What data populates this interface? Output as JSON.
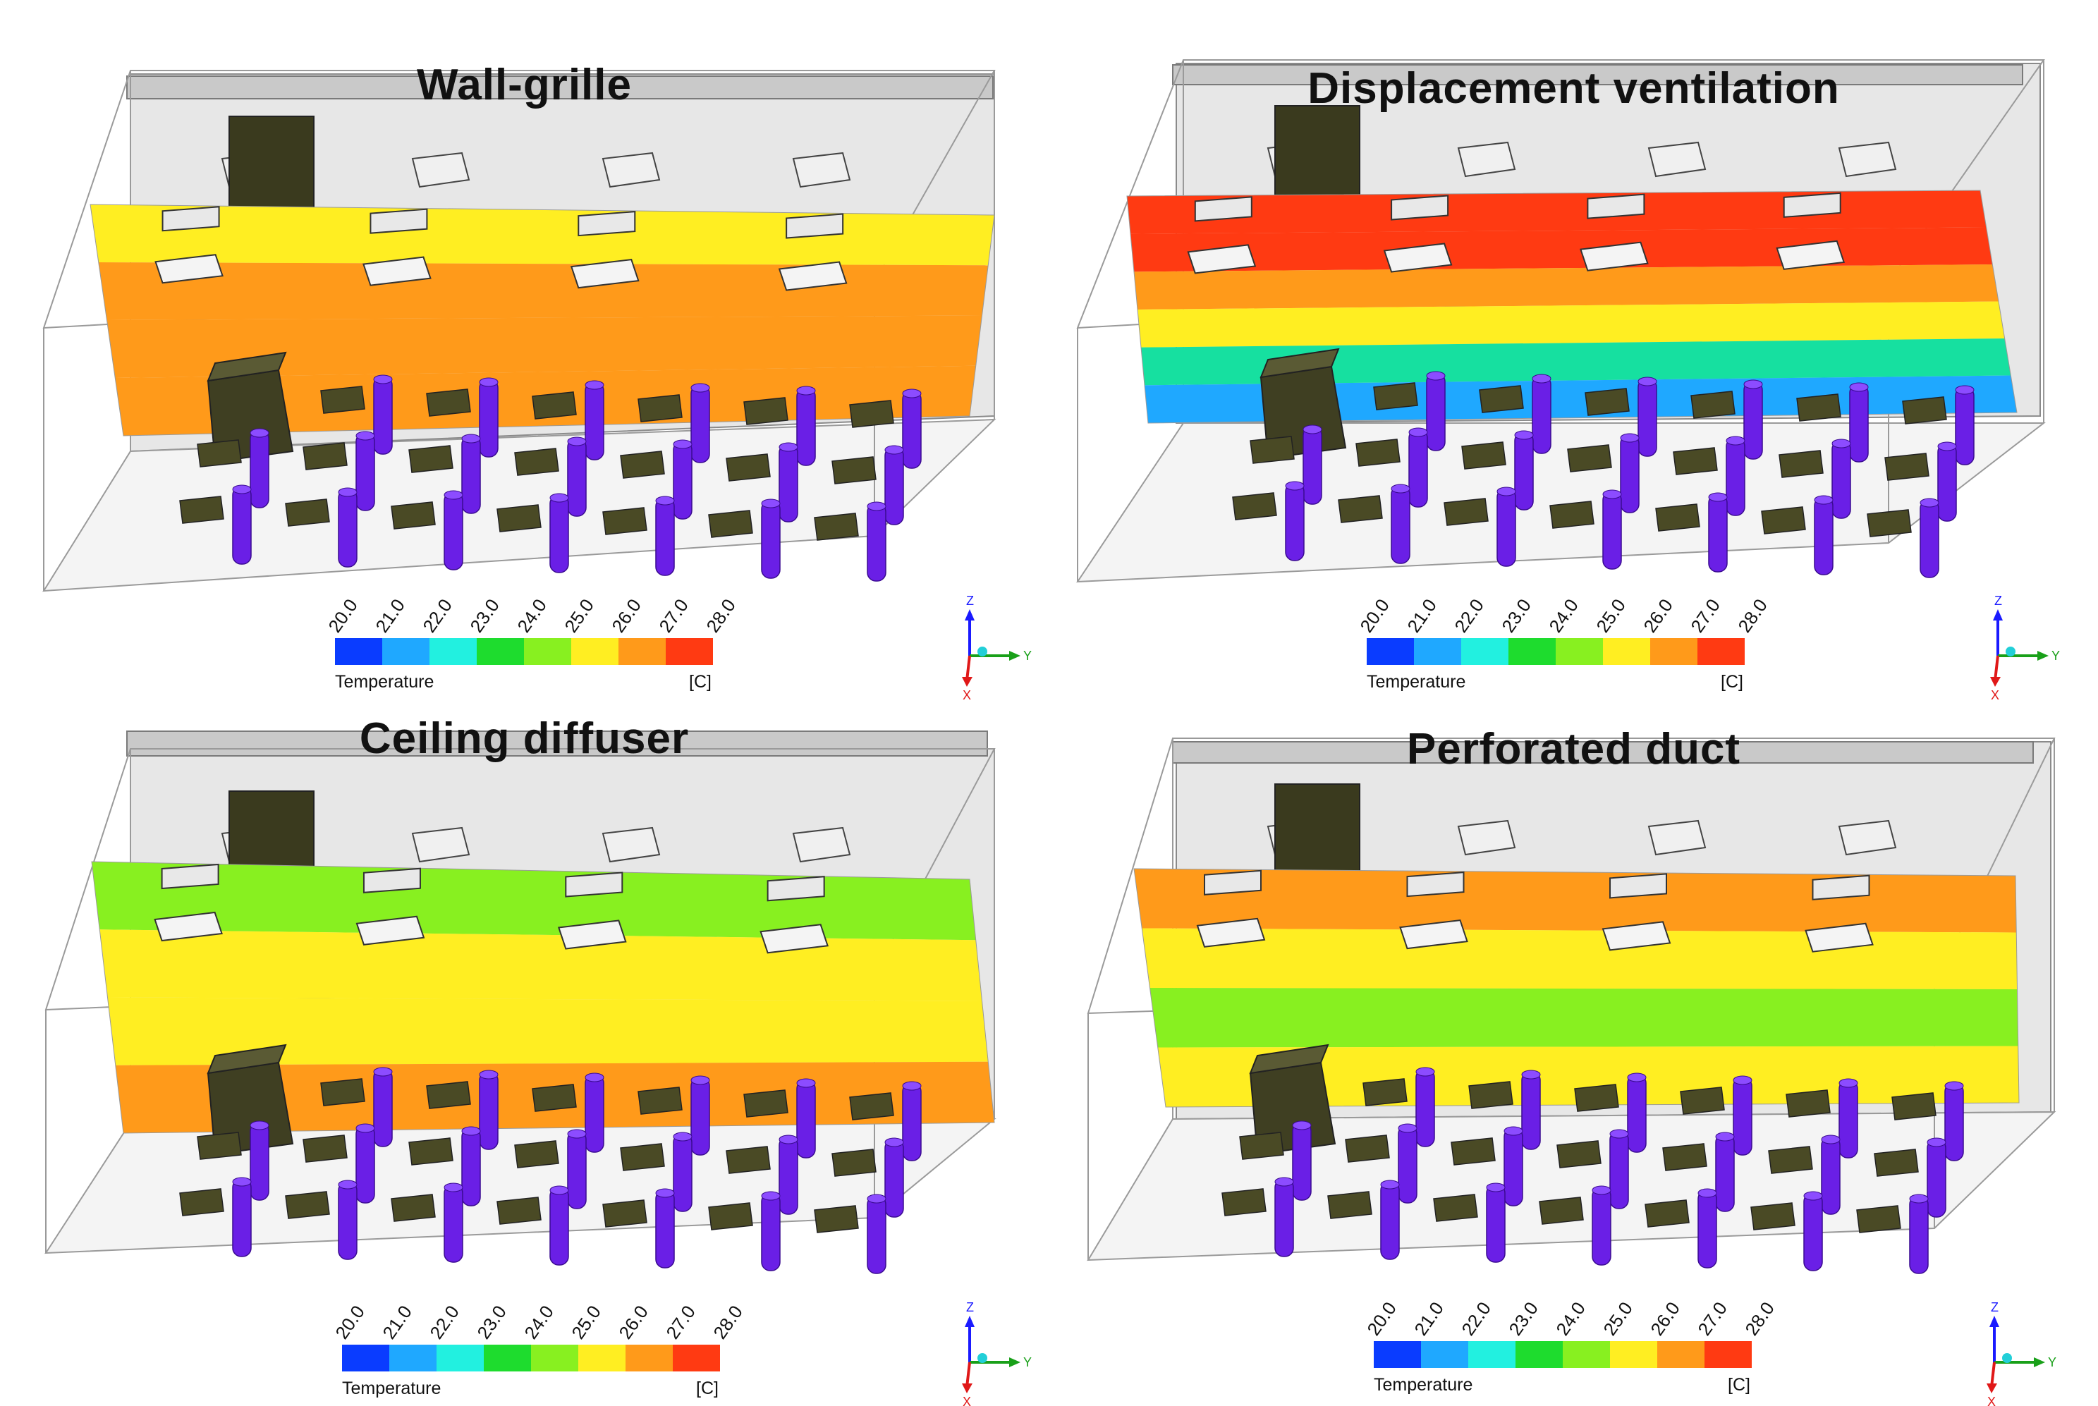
{
  "panels": [
    {
      "title": "Wall-grille",
      "bands": [
        {
          "color": "#ffee22"
        },
        {
          "color": "#ff9a1a"
        },
        {
          "color": "#ff9a1a"
        },
        {
          "color": "#ff9a1a"
        }
      ]
    },
    {
      "title": "Displacement ventilation",
      "bands": [
        {
          "color": "#ff3a12"
        },
        {
          "color": "#ff3a12"
        },
        {
          "color": "#ff9a1a"
        },
        {
          "color": "#ffee22"
        },
        {
          "color": "#16e0a0"
        },
        {
          "color": "#1fa8ff"
        }
      ]
    },
    {
      "title": "Ceiling diffuser",
      "bands": [
        {
          "color": "#88f020"
        },
        {
          "color": "#ffee22"
        },
        {
          "color": "#ffee22"
        },
        {
          "color": "#ff9a1a"
        }
      ]
    },
    {
      "title": "Perforated duct",
      "bands": [
        {
          "color": "#ff9a1a"
        },
        {
          "color": "#ffee22"
        },
        {
          "color": "#88f020"
        },
        {
          "color": "#ffee22"
        }
      ]
    }
  ],
  "legend": {
    "ticks": [
      "20.0",
      "21.0",
      "22.0",
      "23.0",
      "24.0",
      "25.0",
      "26.0",
      "27.0",
      "28.0"
    ],
    "colors": [
      "#0a3cff",
      "#1fa8ff",
      "#22f0e0",
      "#1edc2e",
      "#88f020",
      "#ffee22",
      "#ff9a1a",
      "#ff3a12"
    ],
    "label": "Temperature",
    "unit": "[C]"
  },
  "axes": {
    "z": "Z",
    "y": "Y",
    "x": "X"
  }
}
